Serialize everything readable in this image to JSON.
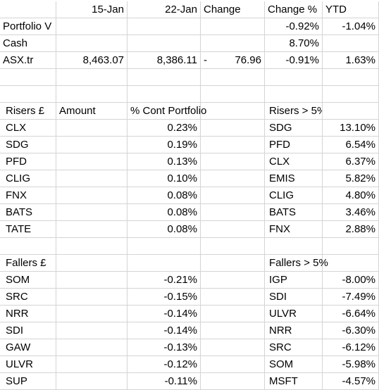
{
  "header": {
    "date1": "15-Jan",
    "date2": "22-Jan",
    "change": "Change",
    "change_pct": "Change %",
    "ytd": "YTD"
  },
  "portfolio": {
    "label": "Portfolio V",
    "change_pct": "-0.92%",
    "ytd": "-1.04%"
  },
  "cash": {
    "label": "Cash",
    "value": "8.70%"
  },
  "asx": {
    "label": "ASX.tr",
    "v1": "8,463.07",
    "v2": "8,386.11",
    "change_sign": "-",
    "change_val": "76.96",
    "change_pct": "-0.91%",
    "ytd": "1.63%"
  },
  "risers": {
    "h_name": "Risers £",
    "h_amount": "Amount",
    "h_cont": "% Cont Portfolio",
    "h_big": "Risers > 5%",
    "rows": [
      {
        "name": "CLX",
        "cont": "0.23%",
        "big_name": "SDG",
        "big_val": "13.10%"
      },
      {
        "name": "SDG",
        "cont": "0.19%",
        "big_name": "PFD",
        "big_val": "6.54%"
      },
      {
        "name": "PFD",
        "cont": "0.13%",
        "big_name": "CLX",
        "big_val": "6.37%"
      },
      {
        "name": "CLIG",
        "cont": "0.10%",
        "big_name": "EMIS",
        "big_val": "5.82%"
      },
      {
        "name": "FNX",
        "cont": "0.08%",
        "big_name": "CLIG",
        "big_val": "4.80%"
      },
      {
        "name": "BATS",
        "cont": "0.08%",
        "big_name": "BATS",
        "big_val": "3.46%"
      },
      {
        "name": "TATE",
        "cont": "0.08%",
        "big_name": "FNX",
        "big_val": "2.88%"
      }
    ]
  },
  "fallers": {
    "h_name": "Fallers £",
    "h_big": "Fallers > 5%",
    "rows": [
      {
        "name": "SOM",
        "cont": "-0.21%",
        "big_name": "IGP",
        "big_val": "-8.00%"
      },
      {
        "name": "SRC",
        "cont": "-0.15%",
        "big_name": "SDI",
        "big_val": "-7.49%"
      },
      {
        "name": "NRR",
        "cont": "-0.14%",
        "big_name": "ULVR",
        "big_val": "-6.64%"
      },
      {
        "name": "SDI",
        "cont": "-0.14%",
        "big_name": "NRR",
        "big_val": "-6.30%"
      },
      {
        "name": "GAW",
        "cont": "-0.13%",
        "big_name": "SRC",
        "big_val": "-6.12%"
      },
      {
        "name": "ULVR",
        "cont": "-0.12%",
        "big_name": "SOM",
        "big_val": "-5.98%"
      },
      {
        "name": "SUP",
        "cont": "-0.11%",
        "big_name": "MSFT",
        "big_val": "-4.57%"
      }
    ]
  }
}
